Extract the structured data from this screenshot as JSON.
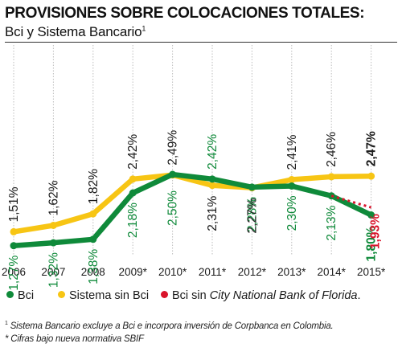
{
  "title": "PROVISIONES SOBRE COLOCACIONES TOTALES:",
  "subtitle": "Bci y Sistema Bancario",
  "subtitle_sup": "1",
  "chart_data": {
    "type": "line",
    "categories": [
      "2006",
      "2007",
      "2008",
      "2009*",
      "2010*",
      "2011*",
      "2012*",
      "2013*",
      "2014*",
      "2015*"
    ],
    "series": [
      {
        "name": "Bci",
        "color": "#0f8a3a",
        "values": [
          1.27,
          1.32,
          1.38,
          2.18,
          2.5,
          2.42,
          2.28,
          2.3,
          2.13,
          1.8
        ],
        "labels": [
          "1,27%",
          "1,32%",
          "1,38%",
          "2,18%",
          "2,50%",
          "2,42%",
          "2,28%",
          "2,30%",
          "2,13%",
          "1,80%"
        ]
      },
      {
        "name": "Sistema sin Bci",
        "color": "#f7c514",
        "values": [
          1.51,
          1.62,
          1.82,
          2.42,
          2.49,
          2.31,
          2.27,
          2.41,
          2.46,
          2.47
        ],
        "labels": [
          "1,51%",
          "1,62%",
          "1,82%",
          "2,42%",
          "2,49%",
          "2,31%",
          "2,27%",
          "2,41%",
          "2,46%",
          "2,47%"
        ]
      },
      {
        "name": "Bci sin City National Bank of Florida.",
        "color": "#d9142b",
        "style": "dotted",
        "x": [
          "2014*",
          "2015*"
        ],
        "values": [
          2.13,
          1.93
        ],
        "labels": [
          "",
          "1,93%"
        ]
      }
    ],
    "grid": true
  },
  "legend": {
    "items": [
      {
        "label": "Bci",
        "color": "#0f8a3a"
      },
      {
        "label": "Sistema sin Bci",
        "color": "#f7c514"
      },
      {
        "label_prefix": "Bci sin ",
        "label_italic": "City National Bank of Florida",
        "label_suffix": ".",
        "color": "#d9142b"
      }
    ]
  },
  "footnotes": {
    "note1_sup": "1",
    "note1": " Sistema Bancario excluye a Bci e incorpora inversión de Corpbanca en Colombia.",
    "note2": "* Cifras bajo nueva normativa SBIF"
  }
}
